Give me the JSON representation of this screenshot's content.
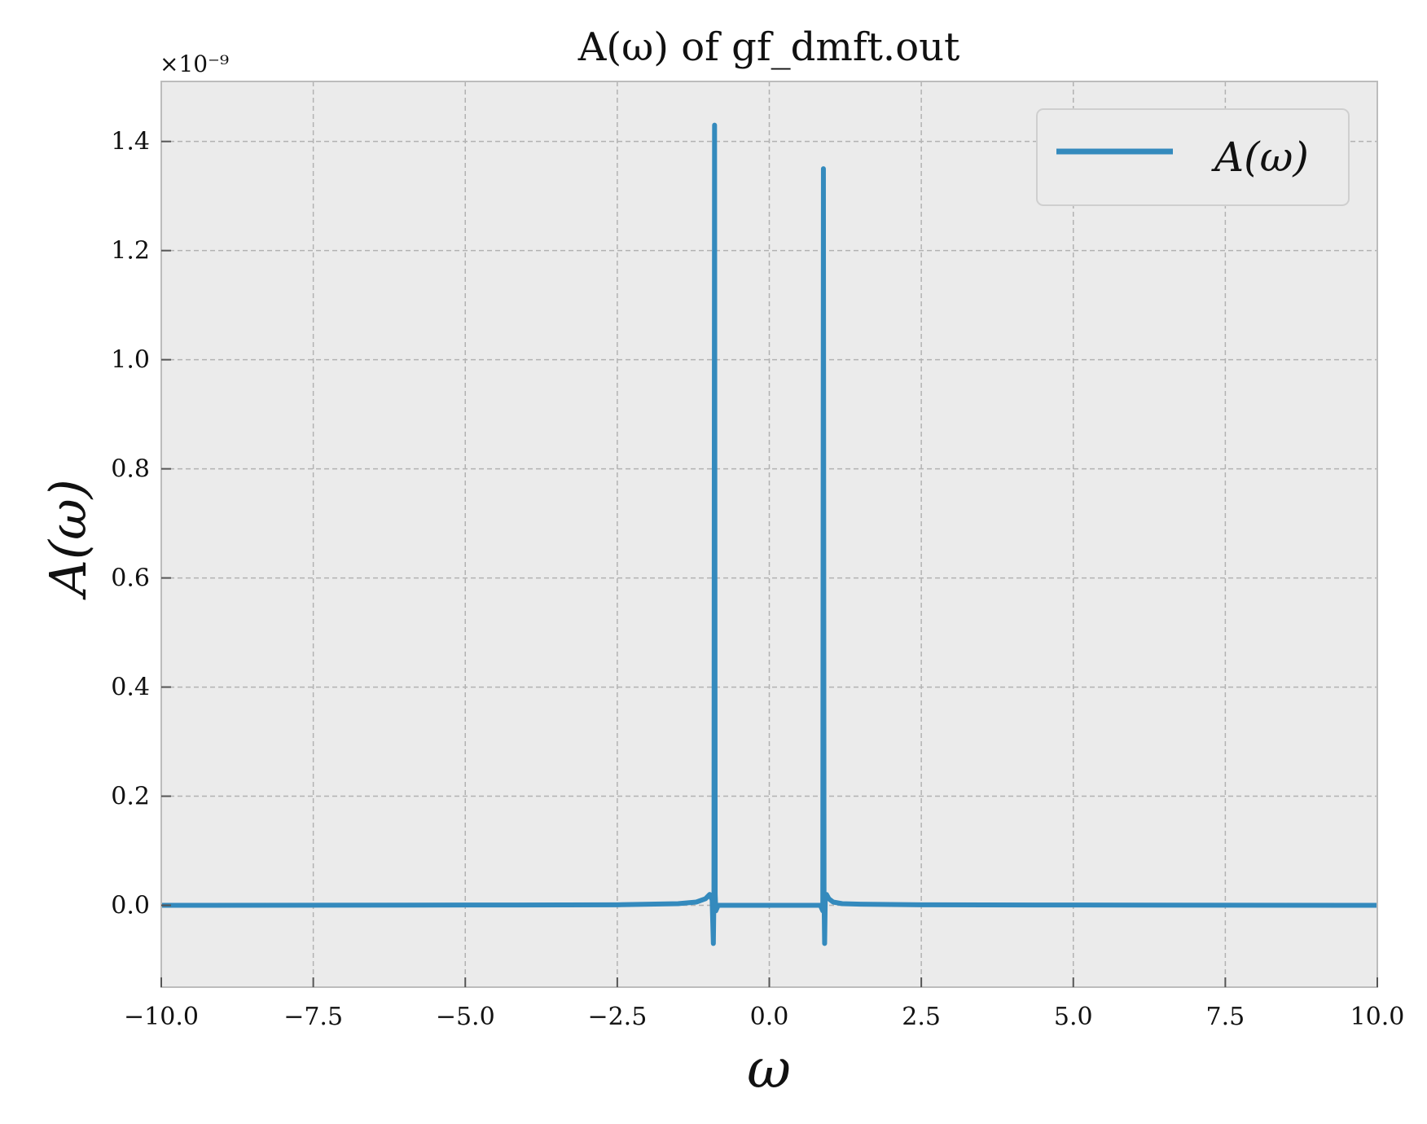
{
  "chart_data": {
    "type": "line",
    "title": "A(ω) of gf_dmft.out",
    "xlabel": "ω",
    "ylabel": "A(ω)",
    "y_offset_label": "×10⁻⁹",
    "xlim": [
      -10.0,
      10.0
    ],
    "ylim": [
      -0.15,
      1.51
    ],
    "xticks": [
      -10.0,
      -7.5,
      -5.0,
      -2.5,
      0.0,
      2.5,
      5.0,
      7.5,
      10.0
    ],
    "xtick_labels": [
      "−10.0",
      "−7.5",
      "−5.0",
      "−2.5",
      "0.0",
      "2.5",
      "5.0",
      "7.5",
      "10.0"
    ],
    "yticks": [
      0.0,
      0.2,
      0.4,
      0.6,
      0.8,
      1.0,
      1.2,
      1.4
    ],
    "ytick_labels": [
      "0.0",
      "0.2",
      "0.4",
      "0.6",
      "0.8",
      "1.0",
      "1.2",
      "1.4"
    ],
    "grid": true,
    "legend_position": "top-right",
    "series": [
      {
        "name": "A(ω)",
        "color": "#348ABD",
        "x": [
          -10.0,
          -5.0,
          -2.5,
          -1.5,
          -1.2,
          -1.05,
          -0.98,
          -0.94,
          -0.92,
          -0.91,
          -0.9,
          -0.89,
          -0.88,
          -0.86,
          -0.84,
          -0.5,
          0.0,
          0.5,
          0.84,
          0.86,
          0.88,
          0.89,
          0.9,
          0.91,
          0.92,
          0.94,
          0.98,
          1.05,
          1.2,
          1.5,
          2.5,
          5.0,
          10.0
        ],
        "y": [
          0.0,
          0.0005,
          0.001,
          0.003,
          0.006,
          0.012,
          0.02,
          0.01,
          -0.07,
          0.02,
          1.43,
          0.02,
          -0.01,
          -0.005,
          0.0,
          0.0,
          0.0,
          0.0,
          0.0,
          -0.005,
          -0.01,
          1.35,
          0.02,
          -0.07,
          0.01,
          0.02,
          0.012,
          0.006,
          0.003,
          0.002,
          0.001,
          0.0005,
          0.0
        ]
      }
    ]
  }
}
